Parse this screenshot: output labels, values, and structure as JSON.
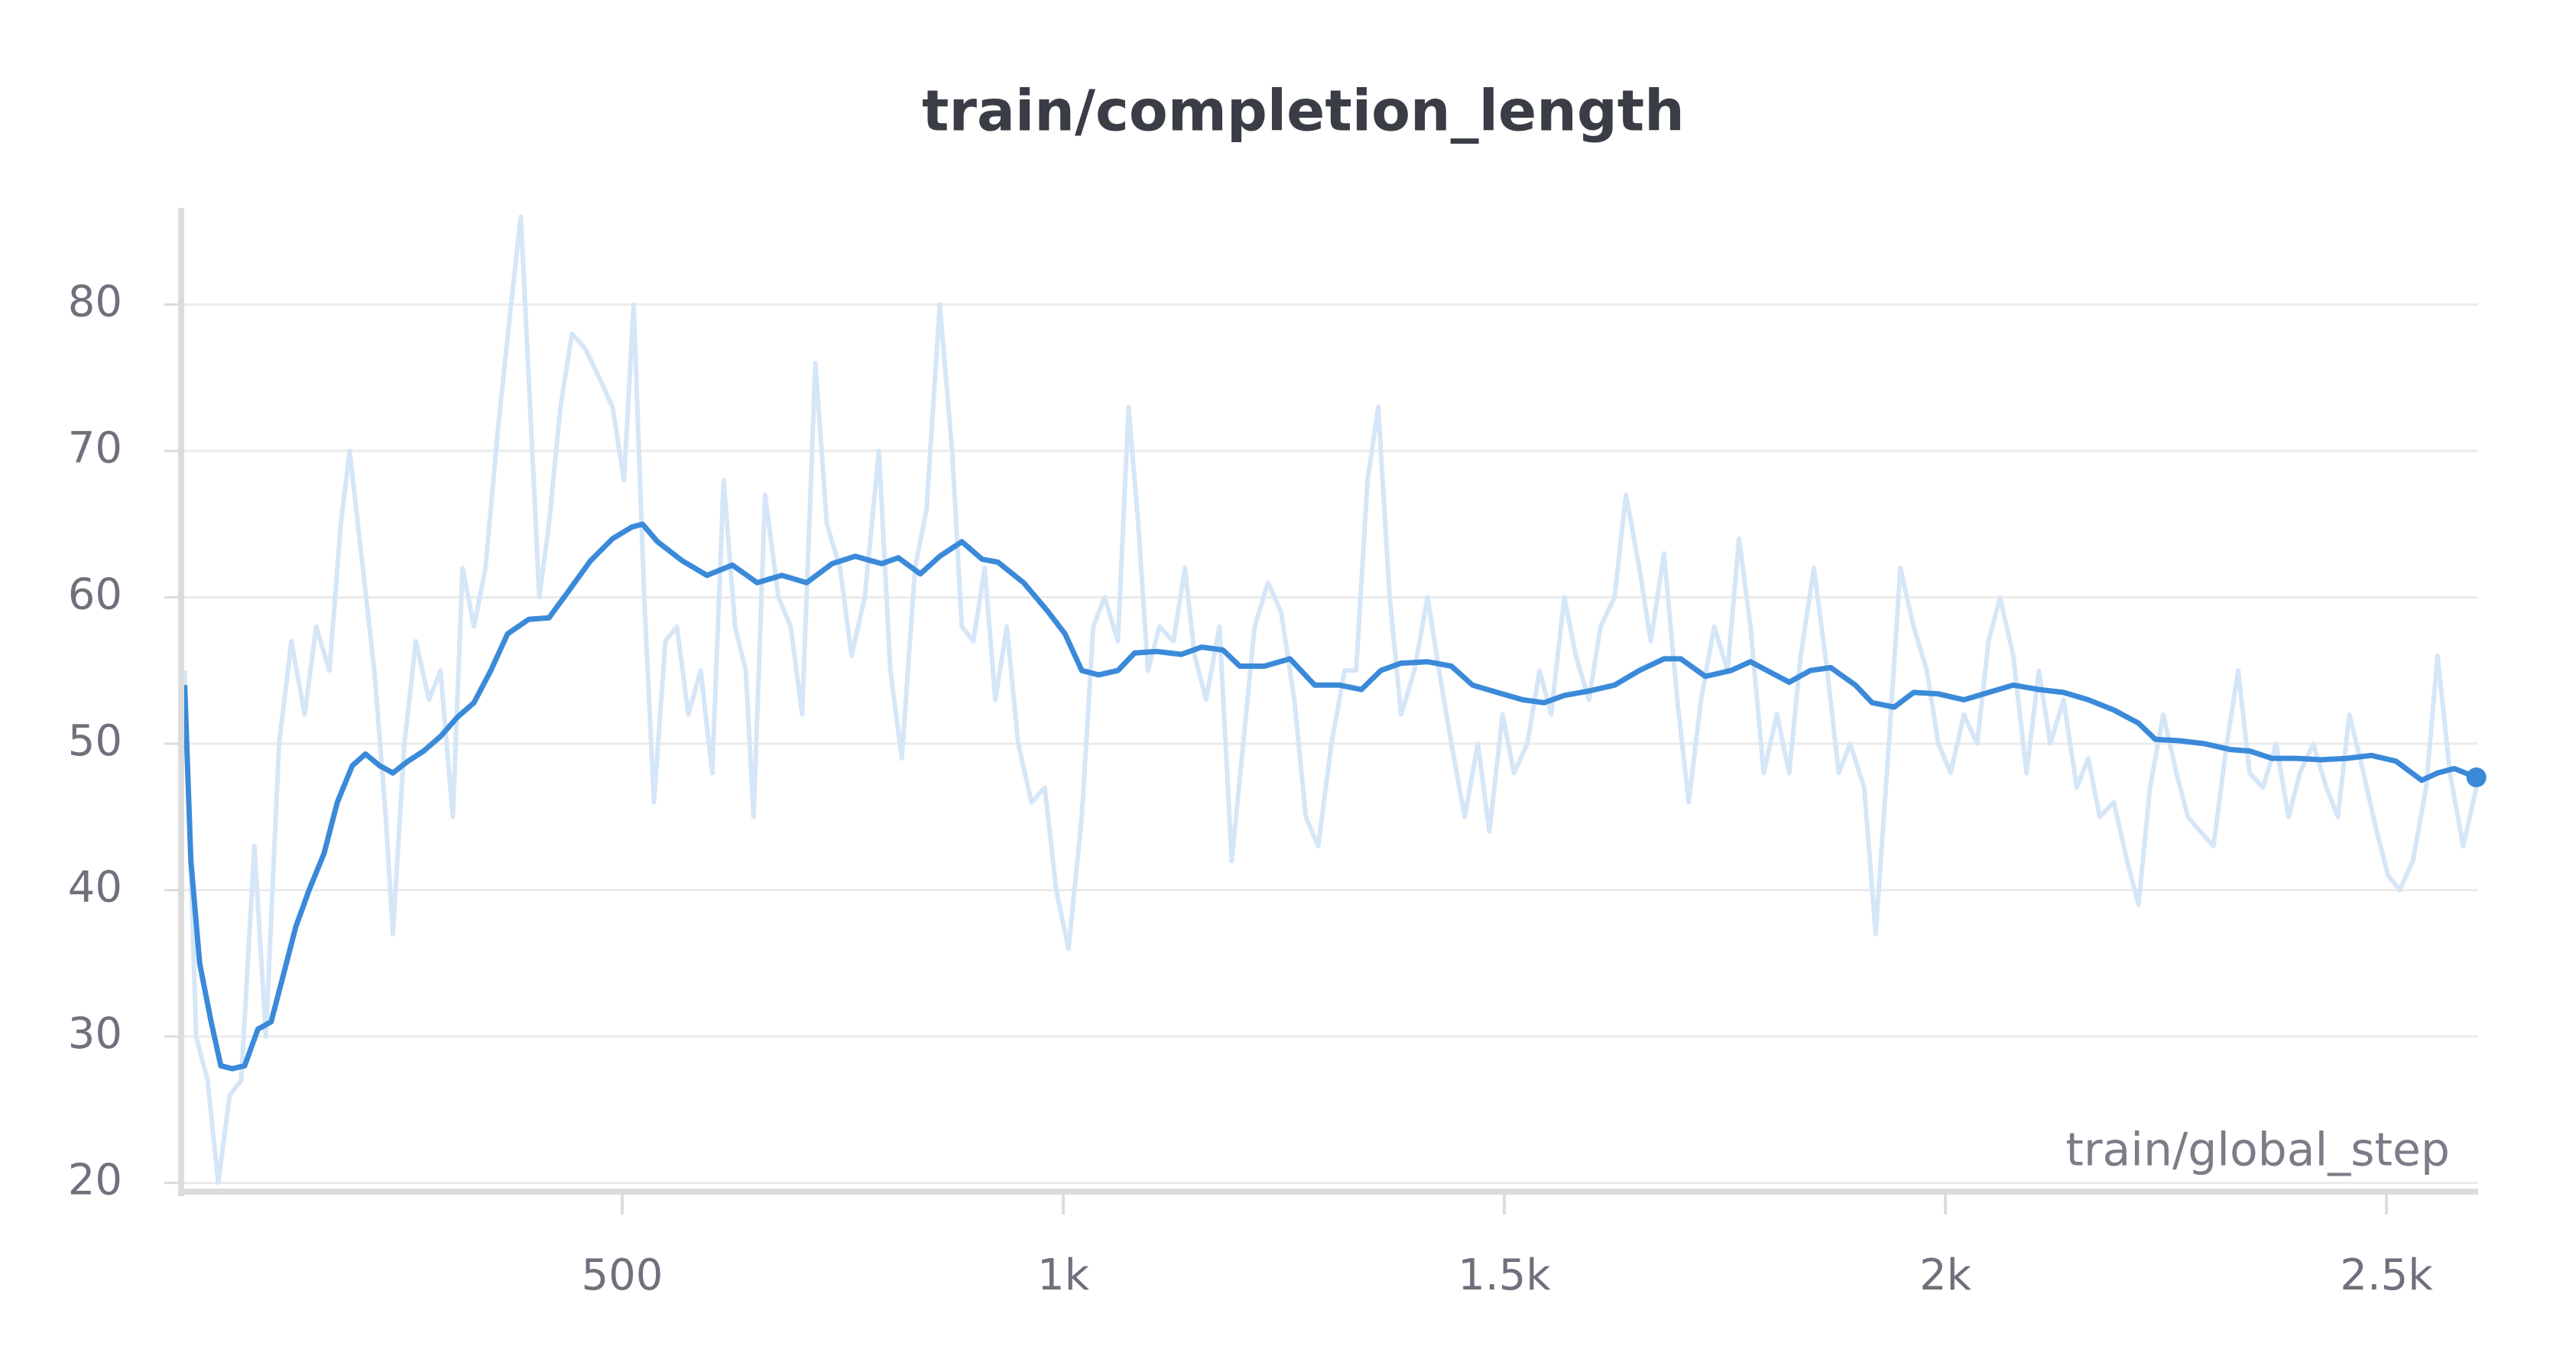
{
  "chart_data": {
    "type": "line",
    "title": "train/completion_length",
    "x_label": "train/global_step",
    "xlim": [
      0,
      2604
    ],
    "ylim": [
      19.4,
      86.6
    ],
    "xticks": [
      {
        "value": 500,
        "label": "500"
      },
      {
        "value": 1000,
        "label": "1k"
      },
      {
        "value": 1500,
        "label": "1.5k"
      },
      {
        "value": 2000,
        "label": "2k"
      },
      {
        "value": 2500,
        "label": "2.5k"
      }
    ],
    "yticks": [
      20,
      30,
      40,
      50,
      60,
      70,
      80
    ],
    "grid": true,
    "series": [
      {
        "color": "#d5e6f7",
        "x": [
          4,
          17,
          30,
          42,
          55,
          68,
          83,
          96,
          111,
          125,
          140,
          153,
          168,
          181,
          191,
          206,
          219,
          232,
          240,
          253,
          266,
          281,
          294,
          308,
          319,
          332,
          345,
          360,
          374,
          385,
          394,
          406,
          417,
          430,
          443,
          458,
          474,
          489,
          502,
          513,
          525,
          536,
          549,
          562,
          575,
          589,
          602,
          615,
          628,
          640,
          649,
          662,
          677,
          691,
          704,
          719,
          732,
          747,
          760,
          775,
          791,
          804,
          817,
          832,
          845,
          860,
          874,
          885,
          898,
          911,
          923,
          936,
          949,
          964,
          979,
          992,
          1006,
          1021,
          1034,
          1047,
          1062,
          1074,
          1085,
          1096,
          1109,
          1125,
          1138,
          1149,
          1162,
          1177,
          1191,
          1204,
          1217,
          1232,
          1247,
          1262,
          1275,
          1289,
          1304,
          1319,
          1332,
          1345,
          1357,
          1370,
          1383,
          1398,
          1413,
          1426,
          1440,
          1455,
          1470,
          1483,
          1498,
          1511,
          1526,
          1540,
          1553,
          1568,
          1581,
          1596,
          1609,
          1625,
          1638,
          1653,
          1666,
          1681,
          1696,
          1709,
          1723,
          1738,
          1753,
          1766,
          1779,
          1794,
          1809,
          1823,
          1836,
          1851,
          1866,
          1879,
          1892,
          1908,
          1921,
          1936,
          1949,
          1964,
          1979,
          1992,
          2006,
          2021,
          2036,
          2049,
          2062,
          2077,
          2092,
          2106,
          2119,
          2134,
          2149,
          2162,
          2175,
          2191,
          2206,
          2219,
          2232,
          2247,
          2262,
          2275,
          2289,
          2304,
          2319,
          2332,
          2345,
          2360,
          2375,
          2389,
          2402,
          2417,
          2432,
          2445,
          2458,
          2474,
          2489,
          2502,
          2515,
          2530,
          2545,
          2558,
          2572,
          2587,
          2602
        ],
        "values": [
          55,
          30,
          27,
          20,
          26,
          27,
          43,
          30,
          50,
          57,
          52,
          58,
          55,
          65,
          70,
          62,
          55,
          45,
          37,
          50,
          57,
          53,
          55,
          45,
          62,
          58,
          62,
          72,
          80,
          86,
          75,
          60,
          65,
          73,
          78,
          77,
          75,
          73,
          68,
          80,
          60,
          46,
          57,
          58,
          52,
          55,
          48,
          68,
          58,
          55,
          45,
          67,
          60,
          58,
          52,
          76,
          65,
          62,
          56,
          60,
          70,
          55,
          49,
          62,
          66,
          80,
          70,
          58,
          57,
          62,
          53,
          58,
          50,
          46,
          47,
          40,
          36,
          45,
          58,
          60,
          57,
          73,
          65,
          55,
          58,
          57,
          62,
          56,
          53,
          58,
          42,
          50,
          58,
          61,
          59,
          53,
          45,
          43,
          50,
          55,
          55,
          68,
          73,
          60,
          52,
          55,
          60,
          55,
          50,
          45,
          50,
          44,
          52,
          48,
          50,
          55,
          52,
          60,
          56,
          53,
          58,
          60,
          67,
          62,
          57,
          63,
          53,
          46,
          53,
          58,
          55,
          64,
          58,
          48,
          52,
          48,
          56,
          62,
          55,
          48,
          50,
          47,
          37,
          50,
          62,
          58,
          55,
          50,
          48,
          52,
          50,
          57,
          60,
          56,
          48,
          55,
          50,
          53,
          47,
          49,
          45,
          46,
          42,
          39,
          47,
          52,
          48,
          45,
          44,
          43,
          50,
          55,
          48,
          47,
          50,
          45,
          48,
          50,
          47,
          45,
          52,
          48,
          44,
          41,
          40,
          42,
          47,
          56,
          48,
          43,
          47
        ]
      },
      {
        "color": "#3b8ad9",
        "x": [
          4,
          11,
          21,
          34,
          45,
          58,
          72,
          87,
          102,
          115,
          130,
          145,
          162,
          177,
          194,
          209,
          225,
          240,
          257,
          275,
          294,
          313,
          332,
          351,
          370,
          394,
          417,
          440,
          464,
          489,
          511,
          523,
          540,
          568,
          596,
          625,
          653,
          681,
          709,
          738,
          764,
          794,
          813,
          838,
          860,
          885,
          908,
          926,
          955,
          983,
          1002,
          1021,
          1040,
          1062,
          1081,
          1106,
          1134,
          1157,
          1181,
          1200,
          1228,
          1257,
          1285,
          1313,
          1338,
          1360,
          1383,
          1413,
          1440,
          1464,
          1492,
          1521,
          1545,
          1568,
          1596,
          1625,
          1653,
          1681,
          1700,
          1728,
          1757,
          1779,
          1804,
          1823,
          1847,
          1870,
          1898,
          1917,
          1942,
          1964,
          1992,
          2021,
          2049,
          2077,
          2106,
          2134,
          2162,
          2191,
          2219,
          2238,
          2266,
          2294,
          2323,
          2345,
          2370,
          2398,
          2426,
          2455,
          2483,
          2511,
          2540,
          2558,
          2577,
          2602
        ],
        "values": [
          54,
          42,
          35,
          31,
          28,
          27.8,
          28,
          30.5,
          31,
          34,
          37.5,
          40,
          42.5,
          46,
          48.5,
          49.3,
          48.5,
          48,
          48.8,
          49.5,
          50.5,
          51.8,
          52.8,
          55,
          57.5,
          58.5,
          58.6,
          60.5,
          62.5,
          64,
          64.8,
          65,
          63.8,
          62.5,
          61.5,
          62.2,
          61,
          61.5,
          61,
          62.3,
          62.8,
          62.3,
          62.7,
          61.6,
          62.8,
          63.8,
          62.6,
          62.4,
          61,
          59,
          57.5,
          55,
          54.7,
          55,
          56.2,
          56.3,
          56.1,
          56.6,
          56.4,
          55.3,
          55.3,
          55.8,
          54,
          54,
          53.7,
          55,
          55.5,
          55.6,
          55.3,
          54,
          53.5,
          53,
          52.8,
          53.3,
          53.6,
          54,
          55,
          55.8,
          55.8,
          54.6,
          55,
          55.6,
          54.8,
          54.2,
          55,
          55.2,
          54,
          52.8,
          52.5,
          53.5,
          53.4,
          53,
          53.5,
          54,
          53.7,
          53.5,
          53,
          52.3,
          51.4,
          50.3,
          50.2,
          50,
          49.6,
          49.5,
          49,
          49,
          48.9,
          49,
          49.2,
          48.8,
          47.5,
          48,
          48.3,
          47.7
        ]
      }
    ]
  }
}
